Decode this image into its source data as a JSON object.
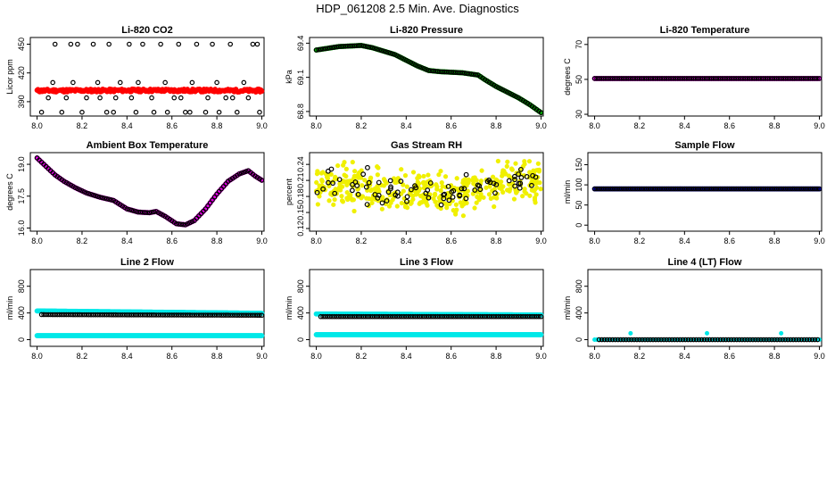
{
  "title": "HDP_061208  2.5 Min. Ave. Diagnostics",
  "chart_data": [
    {
      "type": "scatter",
      "title": "Li-820 CO2",
      "ylabel": "Licor ppm",
      "xlim": [
        7.97,
        9.01
      ],
      "ylim": [
        375,
        457
      ],
      "xticks": [
        8.0,
        8.2,
        8.4,
        8.6,
        8.8,
        9.0
      ],
      "yticks": [
        390,
        420,
        450
      ],
      "series": [
        {
          "color": "#ff0000",
          "style": "dense",
          "pattern": "co2",
          "points": [
            [
              8.0,
              401.5
            ],
            [
              8.5,
              401.8
            ],
            [
              9.0,
              401.5
            ]
          ]
        },
        {
          "color": "#000000",
          "style": "points",
          "points": [
            [
              8.02,
              379
            ],
            [
              8.05,
              394
            ],
            [
              8.07,
              410
            ],
            [
              8.08,
              450
            ],
            [
              8.11,
              379
            ],
            [
              8.13,
              394
            ],
            [
              8.15,
              450
            ],
            [
              8.16,
              410
            ],
            [
              8.18,
              450
            ],
            [
              8.2,
              379
            ],
            [
              8.22,
              394
            ],
            [
              8.25,
              450
            ],
            [
              8.27,
              410
            ],
            [
              8.28,
              394
            ],
            [
              8.31,
              379
            ],
            [
              8.32,
              450
            ],
            [
              8.34,
              379
            ],
            [
              8.35,
              394
            ],
            [
              8.37,
              410
            ],
            [
              8.41,
              450
            ],
            [
              8.42,
              394
            ],
            [
              8.44,
              379
            ],
            [
              8.45,
              410
            ],
            [
              8.47,
              450
            ],
            [
              8.51,
              394
            ],
            [
              8.52,
              379
            ],
            [
              8.55,
              450
            ],
            [
              8.57,
              410
            ],
            [
              8.58,
              379
            ],
            [
              8.61,
              394
            ],
            [
              8.63,
              450
            ],
            [
              8.64,
              394
            ],
            [
              8.66,
              379
            ],
            [
              8.68,
              379
            ],
            [
              8.69,
              410
            ],
            [
              8.71,
              450
            ],
            [
              8.75,
              379
            ],
            [
              8.76,
              394
            ],
            [
              8.78,
              450
            ],
            [
              8.8,
              410
            ],
            [
              8.81,
              379
            ],
            [
              8.84,
              394
            ],
            [
              8.86,
              450
            ],
            [
              8.87,
              394
            ],
            [
              8.89,
              379
            ],
            [
              8.92,
              410
            ],
            [
              8.94,
              394
            ],
            [
              8.96,
              450
            ],
            [
              8.98,
              450
            ],
            [
              8.99,
              379
            ]
          ]
        }
      ]
    },
    {
      "type": "scatter",
      "title": "Li-820 Pressure",
      "ylabel": "kPa",
      "xlim": [
        7.97,
        9.01
      ],
      "ylim": [
        68.76,
        69.45
      ],
      "xticks": [
        8.0,
        8.2,
        8.4,
        8.6,
        8.8,
        9.0
      ],
      "yticks": [
        68.8,
        69.1,
        69.4
      ],
      "series": [
        {
          "color": "#00c000",
          "style": "dense",
          "points": [
            [
              8.0,
              69.34
            ],
            [
              8.1,
              69.37
            ],
            [
              8.2,
              69.38
            ],
            [
              8.25,
              69.36
            ],
            [
              8.35,
              69.3
            ],
            [
              8.45,
              69.2
            ],
            [
              8.5,
              69.16
            ],
            [
              8.55,
              69.15
            ],
            [
              8.65,
              69.14
            ],
            [
              8.72,
              69.12
            ],
            [
              8.75,
              69.08
            ],
            [
              8.8,
              69.02
            ],
            [
              8.9,
              68.92
            ],
            [
              8.95,
              68.86
            ],
            [
              9.0,
              68.79
            ]
          ]
        },
        {
          "color": "#000000",
          "style": "points",
          "step": 0.01,
          "points": [
            [
              8.0,
              69.34
            ],
            [
              8.1,
              69.37
            ],
            [
              8.2,
              69.38
            ],
            [
              8.25,
              69.36
            ],
            [
              8.35,
              69.3
            ],
            [
              8.45,
              69.2
            ],
            [
              8.5,
              69.16
            ],
            [
              8.55,
              69.15
            ],
            [
              8.65,
              69.14
            ],
            [
              8.72,
              69.12
            ],
            [
              8.75,
              69.08
            ],
            [
              8.8,
              69.02
            ],
            [
              8.9,
              68.92
            ],
            [
              8.95,
              68.86
            ],
            [
              9.0,
              68.79
            ]
          ]
        }
      ]
    },
    {
      "type": "scatter",
      "title": "Li-820 Temperature",
      "ylabel": "degrees C",
      "xlim": [
        7.97,
        9.01
      ],
      "ylim": [
        29,
        74
      ],
      "xticks": [
        8.0,
        8.2,
        8.4,
        8.6,
        8.8,
        9.0
      ],
      "yticks": [
        30,
        50,
        70
      ],
      "series": [
        {
          "color": "#e000e0",
          "style": "dense",
          "points": [
            [
              8.0,
              50.5
            ],
            [
              9.0,
              50.5
            ]
          ]
        },
        {
          "color": "#000000",
          "style": "points",
          "step": 0.01,
          "points": [
            [
              8.0,
              50.5
            ],
            [
              9.0,
              50.5
            ]
          ]
        }
      ]
    },
    {
      "type": "scatter",
      "title": "Ambient Box Temperature",
      "ylabel": "degrees C",
      "xlim": [
        7.97,
        9.01
      ],
      "ylim": [
        15.85,
        19.55
      ],
      "xticks": [
        8.0,
        8.2,
        8.4,
        8.6,
        8.8,
        9.0
      ],
      "yticks": [
        16.0,
        17.5,
        19.0
      ],
      "series": [
        {
          "color": "#e000e0",
          "style": "dense",
          "points": [
            [
              8.0,
              19.3
            ],
            [
              8.04,
              18.9
            ],
            [
              8.08,
              18.5
            ],
            [
              8.12,
              18.2
            ],
            [
              8.17,
              17.9
            ],
            [
              8.22,
              17.65
            ],
            [
              8.28,
              17.45
            ],
            [
              8.34,
              17.3
            ],
            [
              8.4,
              16.9
            ],
            [
              8.45,
              16.75
            ],
            [
              8.5,
              16.72
            ],
            [
              8.53,
              16.78
            ],
            [
              8.57,
              16.55
            ],
            [
              8.62,
              16.2
            ],
            [
              8.66,
              16.15
            ],
            [
              8.7,
              16.35
            ],
            [
              8.75,
              16.9
            ],
            [
              8.8,
              17.6
            ],
            [
              8.85,
              18.2
            ],
            [
              8.9,
              18.55
            ],
            [
              8.94,
              18.7
            ],
            [
              8.97,
              18.45
            ],
            [
              9.0,
              18.25
            ]
          ]
        },
        {
          "color": "#000000",
          "style": "points",
          "step": 0.01,
          "points": [
            [
              8.0,
              19.3
            ],
            [
              8.04,
              18.9
            ],
            [
              8.08,
              18.5
            ],
            [
              8.12,
              18.2
            ],
            [
              8.17,
              17.9
            ],
            [
              8.22,
              17.65
            ],
            [
              8.28,
              17.45
            ],
            [
              8.34,
              17.3
            ],
            [
              8.4,
              16.9
            ],
            [
              8.45,
              16.75
            ],
            [
              8.5,
              16.72
            ],
            [
              8.53,
              16.78
            ],
            [
              8.57,
              16.55
            ],
            [
              8.62,
              16.2
            ],
            [
              8.66,
              16.15
            ],
            [
              8.7,
              16.35
            ],
            [
              8.75,
              16.9
            ],
            [
              8.8,
              17.6
            ],
            [
              8.85,
              18.2
            ],
            [
              8.9,
              18.55
            ],
            [
              8.94,
              18.7
            ],
            [
              8.97,
              18.45
            ],
            [
              9.0,
              18.25
            ]
          ]
        }
      ]
    },
    {
      "type": "scatter",
      "title": "Gas Stream RH",
      "ylabel": "percent",
      "xlim": [
        7.97,
        9.01
      ],
      "ylim": [
        0.115,
        0.262
      ],
      "xticks": [
        8.0,
        8.2,
        8.4,
        8.6,
        8.8,
        9.0
      ],
      "yticks": [
        0.12,
        0.15,
        0.18,
        0.21,
        0.24
      ],
      "series": [
        {
          "color": "#f0f000",
          "style": "cloud",
          "count": 420,
          "seed": 7,
          "points": [
            [
              8.0,
              0.21
            ],
            [
              8.2,
              0.2
            ],
            [
              8.4,
              0.19
            ],
            [
              8.6,
              0.185
            ],
            [
              8.75,
              0.2
            ],
            [
              8.9,
              0.215
            ],
            [
              9.0,
              0.21
            ]
          ],
          "spread": 0.03
        },
        {
          "color": "#000000",
          "style": "cloud",
          "count": 80,
          "seed": 3,
          "points": [
            [
              8.0,
              0.21
            ],
            [
              8.2,
              0.2
            ],
            [
              8.4,
              0.19
            ],
            [
              8.6,
              0.185
            ],
            [
              8.75,
              0.2
            ],
            [
              8.9,
              0.215
            ],
            [
              9.0,
              0.21
            ]
          ],
          "spread": 0.022
        }
      ]
    },
    {
      "type": "scatter",
      "title": "Sample Flow",
      "ylabel": "ml/min",
      "xlim": [
        7.97,
        9.01
      ],
      "ylim": [
        -15,
        180
      ],
      "xticks": [
        8.0,
        8.2,
        8.4,
        8.6,
        8.8,
        9.0
      ],
      "yticks": [
        0,
        50,
        100,
        150
      ],
      "series": [
        {
          "color": "#0000c0",
          "style": "dense",
          "points": [
            [
              8.0,
              90
            ],
            [
              9.0,
              90
            ]
          ]
        },
        {
          "color": "#000000",
          "style": "points",
          "step": 0.01,
          "points": [
            [
              8.0,
              90
            ],
            [
              9.0,
              90
            ]
          ]
        }
      ]
    },
    {
      "type": "scatter",
      "title": "Line 2 Flow",
      "ylabel": "ml/min",
      "xlim": [
        7.97,
        9.01
      ],
      "ylim": [
        -100,
        1050
      ],
      "xticks": [
        8.0,
        8.2,
        8.4,
        8.6,
        8.8,
        9.0
      ],
      "yticks": [
        0,
        400,
        800
      ],
      "series": [
        {
          "color": "#00e8e8",
          "style": "dense",
          "points": [
            [
              8.0,
              430
            ],
            [
              9.0,
              395
            ]
          ]
        },
        {
          "color": "#00e8e8",
          "style": "dense",
          "points": [
            [
              8.0,
              60
            ],
            [
              9.0,
              60
            ]
          ]
        },
        {
          "color": "#000000",
          "style": "points",
          "step": 0.01,
          "points": [
            [
              8.02,
              375
            ],
            [
              9.0,
              365
            ]
          ]
        }
      ]
    },
    {
      "type": "scatter",
      "title": "Line 3 Flow",
      "ylabel": "ml/min",
      "xlim": [
        7.97,
        9.01
      ],
      "ylim": [
        -100,
        1050
      ],
      "xticks": [
        8.0,
        8.2,
        8.4,
        8.6,
        8.8,
        9.0
      ],
      "yticks": [
        0,
        400,
        800
      ],
      "series": [
        {
          "color": "#00e8e8",
          "style": "dense",
          "points": [
            [
              8.0,
              385
            ],
            [
              9.0,
              370
            ]
          ]
        },
        {
          "color": "#00e8e8",
          "style": "dense",
          "points": [
            [
              8.0,
              75
            ],
            [
              9.0,
              75
            ]
          ]
        },
        {
          "color": "#000000",
          "style": "points",
          "step": 0.01,
          "points": [
            [
              8.02,
              345
            ],
            [
              9.0,
              345
            ]
          ]
        }
      ]
    },
    {
      "type": "scatter",
      "title": "Line 4 (LT) Flow",
      "ylabel": "ml/min",
      "xlim": [
        7.97,
        9.01
      ],
      "ylim": [
        -100,
        1050
      ],
      "xticks": [
        8.0,
        8.2,
        8.4,
        8.6,
        8.8,
        9.0
      ],
      "yticks": [
        0,
        400,
        800
      ],
      "series": [
        {
          "color": "#00e8e8",
          "style": "points",
          "step": 0.01,
          "points": [
            [
              8.0,
              0
            ],
            [
              9.0,
              0
            ]
          ]
        },
        {
          "color": "#00e8e8",
          "style": "points",
          "step": 0,
          "points": [
            [
              8.16,
              95
            ],
            [
              8.5,
              95
            ],
            [
              8.83,
              95
            ]
          ]
        },
        {
          "color": "#000000",
          "style": "points",
          "step": 0.012,
          "points": [
            [
              8.02,
              0
            ],
            [
              9.0,
              0
            ]
          ]
        }
      ]
    }
  ]
}
